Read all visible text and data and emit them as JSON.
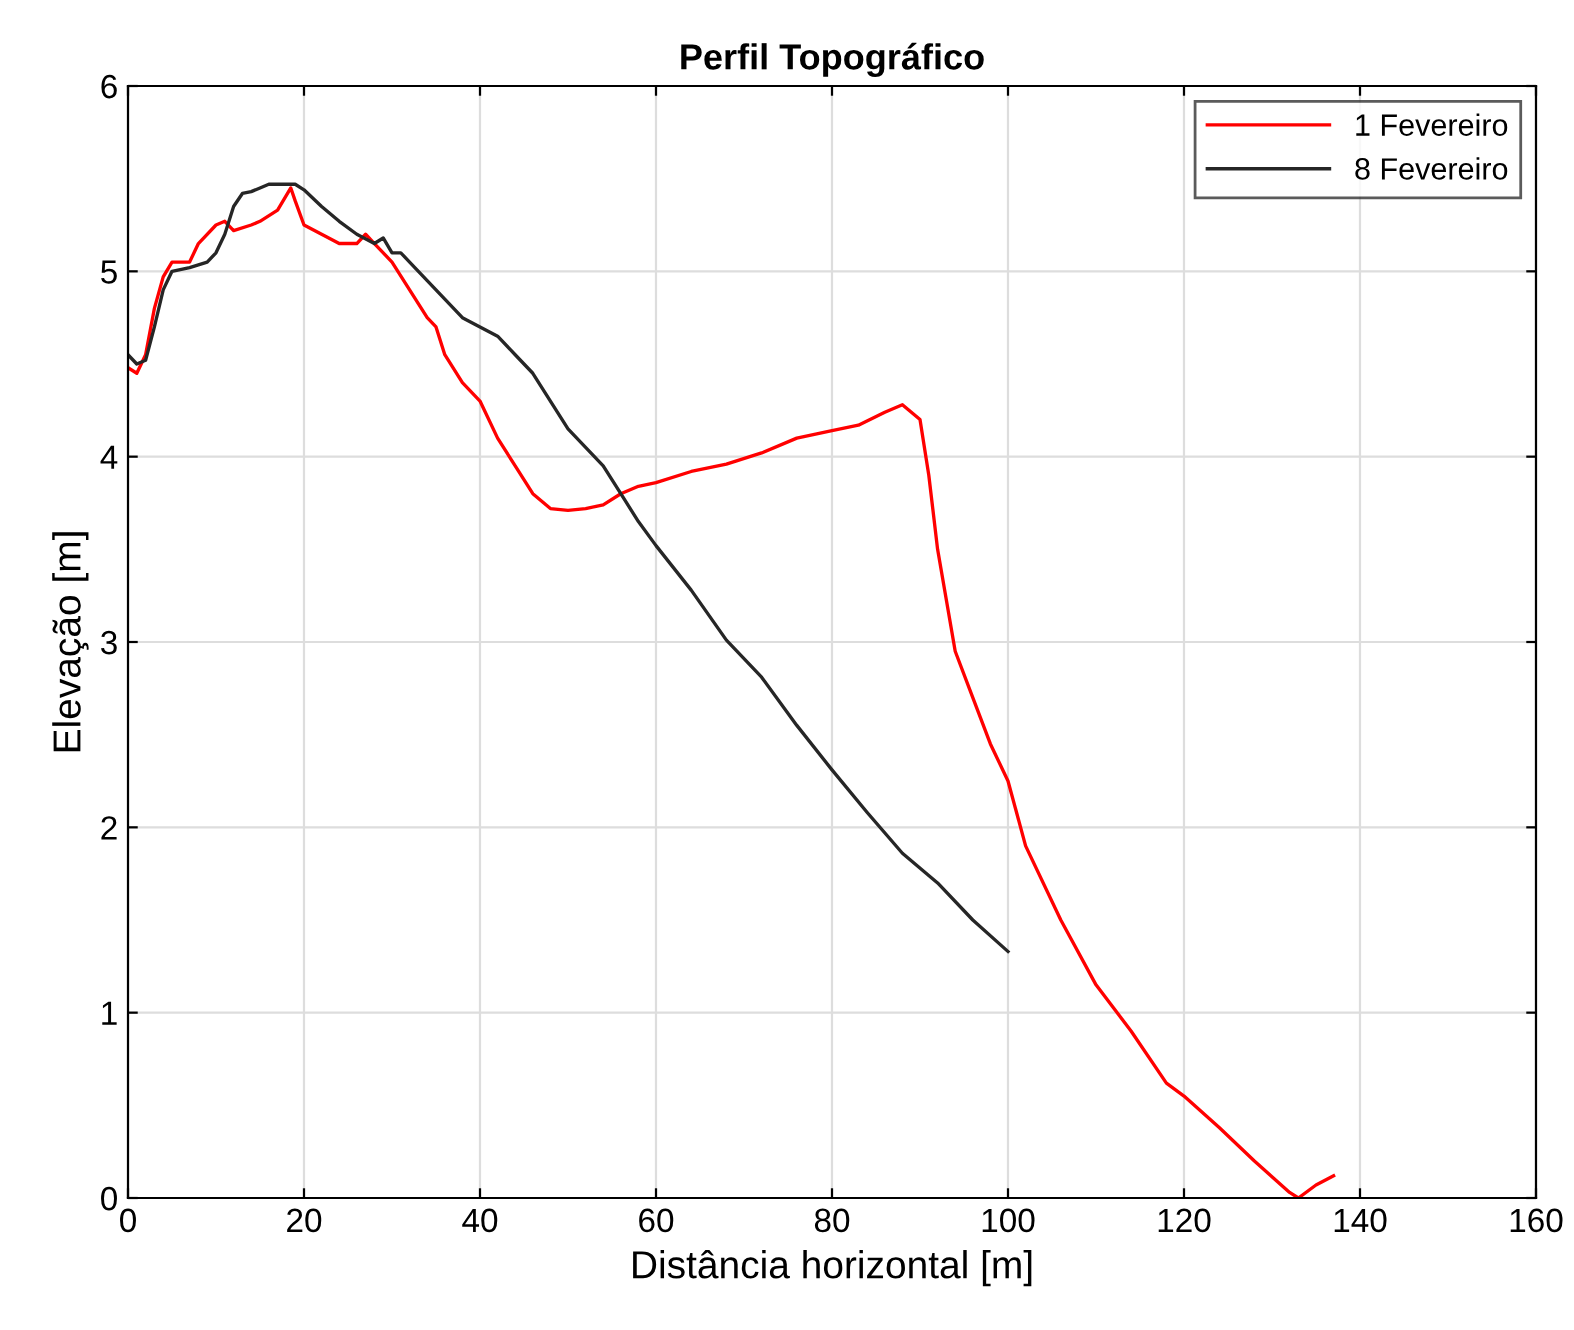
{
  "chart_data": {
    "type": "line",
    "title": "Perfil Topográfico",
    "xlabel": "Distância horizontal [m]",
    "ylabel": "Elevação [m]",
    "xlim": [
      0,
      160
    ],
    "xticks": [
      0,
      20,
      40,
      60,
      80,
      100,
      120,
      140,
      160
    ],
    "ylim": [
      0,
      6
    ],
    "yticks": [
      0,
      1,
      2,
      3,
      4,
      5,
      6
    ],
    "grid": true,
    "legend": "top right",
    "marker": "none",
    "line_style": "solid",
    "series": [
      {
        "name": "1 Fevereiro",
        "color": "#ff0000",
        "x": [
          0,
          1,
          2,
          3,
          4,
          5,
          7,
          8,
          10,
          11,
          12,
          14,
          15,
          17,
          18.5,
          19,
          20,
          22,
          24,
          26,
          27,
          28,
          30,
          32,
          34,
          35,
          36,
          38,
          40,
          42,
          44,
          46,
          48,
          50,
          52,
          54,
          56,
          58,
          60,
          64,
          68,
          72,
          76,
          80,
          83,
          86,
          88,
          90,
          91,
          92,
          94,
          96,
          98,
          100,
          102,
          106,
          110,
          114,
          118,
          120,
          124,
          128,
          132,
          133,
          135,
          137
        ],
        "values": [
          4.48,
          4.45,
          4.55,
          4.8,
          4.97,
          5.05,
          5.05,
          5.15,
          5.25,
          5.27,
          5.22,
          5.25,
          5.27,
          5.33,
          5.45,
          5.38,
          5.25,
          5.2,
          5.15,
          5.15,
          5.2,
          5.15,
          5.05,
          4.9,
          4.75,
          4.7,
          4.55,
          4.4,
          4.3,
          4.1,
          3.95,
          3.8,
          3.72,
          3.71,
          3.72,
          3.74,
          3.8,
          3.84,
          3.86,
          3.92,
          3.96,
          4.02,
          4.1,
          4.14,
          4.17,
          4.24,
          4.28,
          4.2,
          3.9,
          3.5,
          2.95,
          2.7,
          2.45,
          2.25,
          1.9,
          1.5,
          1.15,
          0.9,
          0.62,
          0.55,
          0.38,
          0.2,
          0.03,
          0,
          0.07,
          0.12
        ]
      },
      {
        "name": "8 Fevereiro",
        "color": "#262626",
        "x": [
          0,
          1,
          2,
          3,
          4,
          5,
          7,
          9,
          10,
          11,
          12,
          13,
          14,
          15,
          16,
          18,
          19,
          20,
          22,
          24,
          26,
          28,
          29,
          30,
          31,
          32,
          34,
          36,
          38,
          40,
          42,
          44,
          46,
          48,
          50,
          52,
          54,
          56,
          58,
          60,
          64,
          68,
          72,
          76,
          80,
          84,
          88,
          92,
          96,
          100
        ],
        "values": [
          4.55,
          4.5,
          4.52,
          4.7,
          4.9,
          5.0,
          5.02,
          5.05,
          5.1,
          5.2,
          5.35,
          5.42,
          5.43,
          5.45,
          5.47,
          5.47,
          5.47,
          5.44,
          5.35,
          5.27,
          5.2,
          5.15,
          5.18,
          5.1,
          5.1,
          5.05,
          4.95,
          4.85,
          4.75,
          4.7,
          4.65,
          4.55,
          4.45,
          4.3,
          4.15,
          4.05,
          3.95,
          3.8,
          3.65,
          3.52,
          3.28,
          3.01,
          2.81,
          2.55,
          2.31,
          2.08,
          1.86,
          1.7,
          1.5,
          1.33
        ]
      }
    ]
  }
}
